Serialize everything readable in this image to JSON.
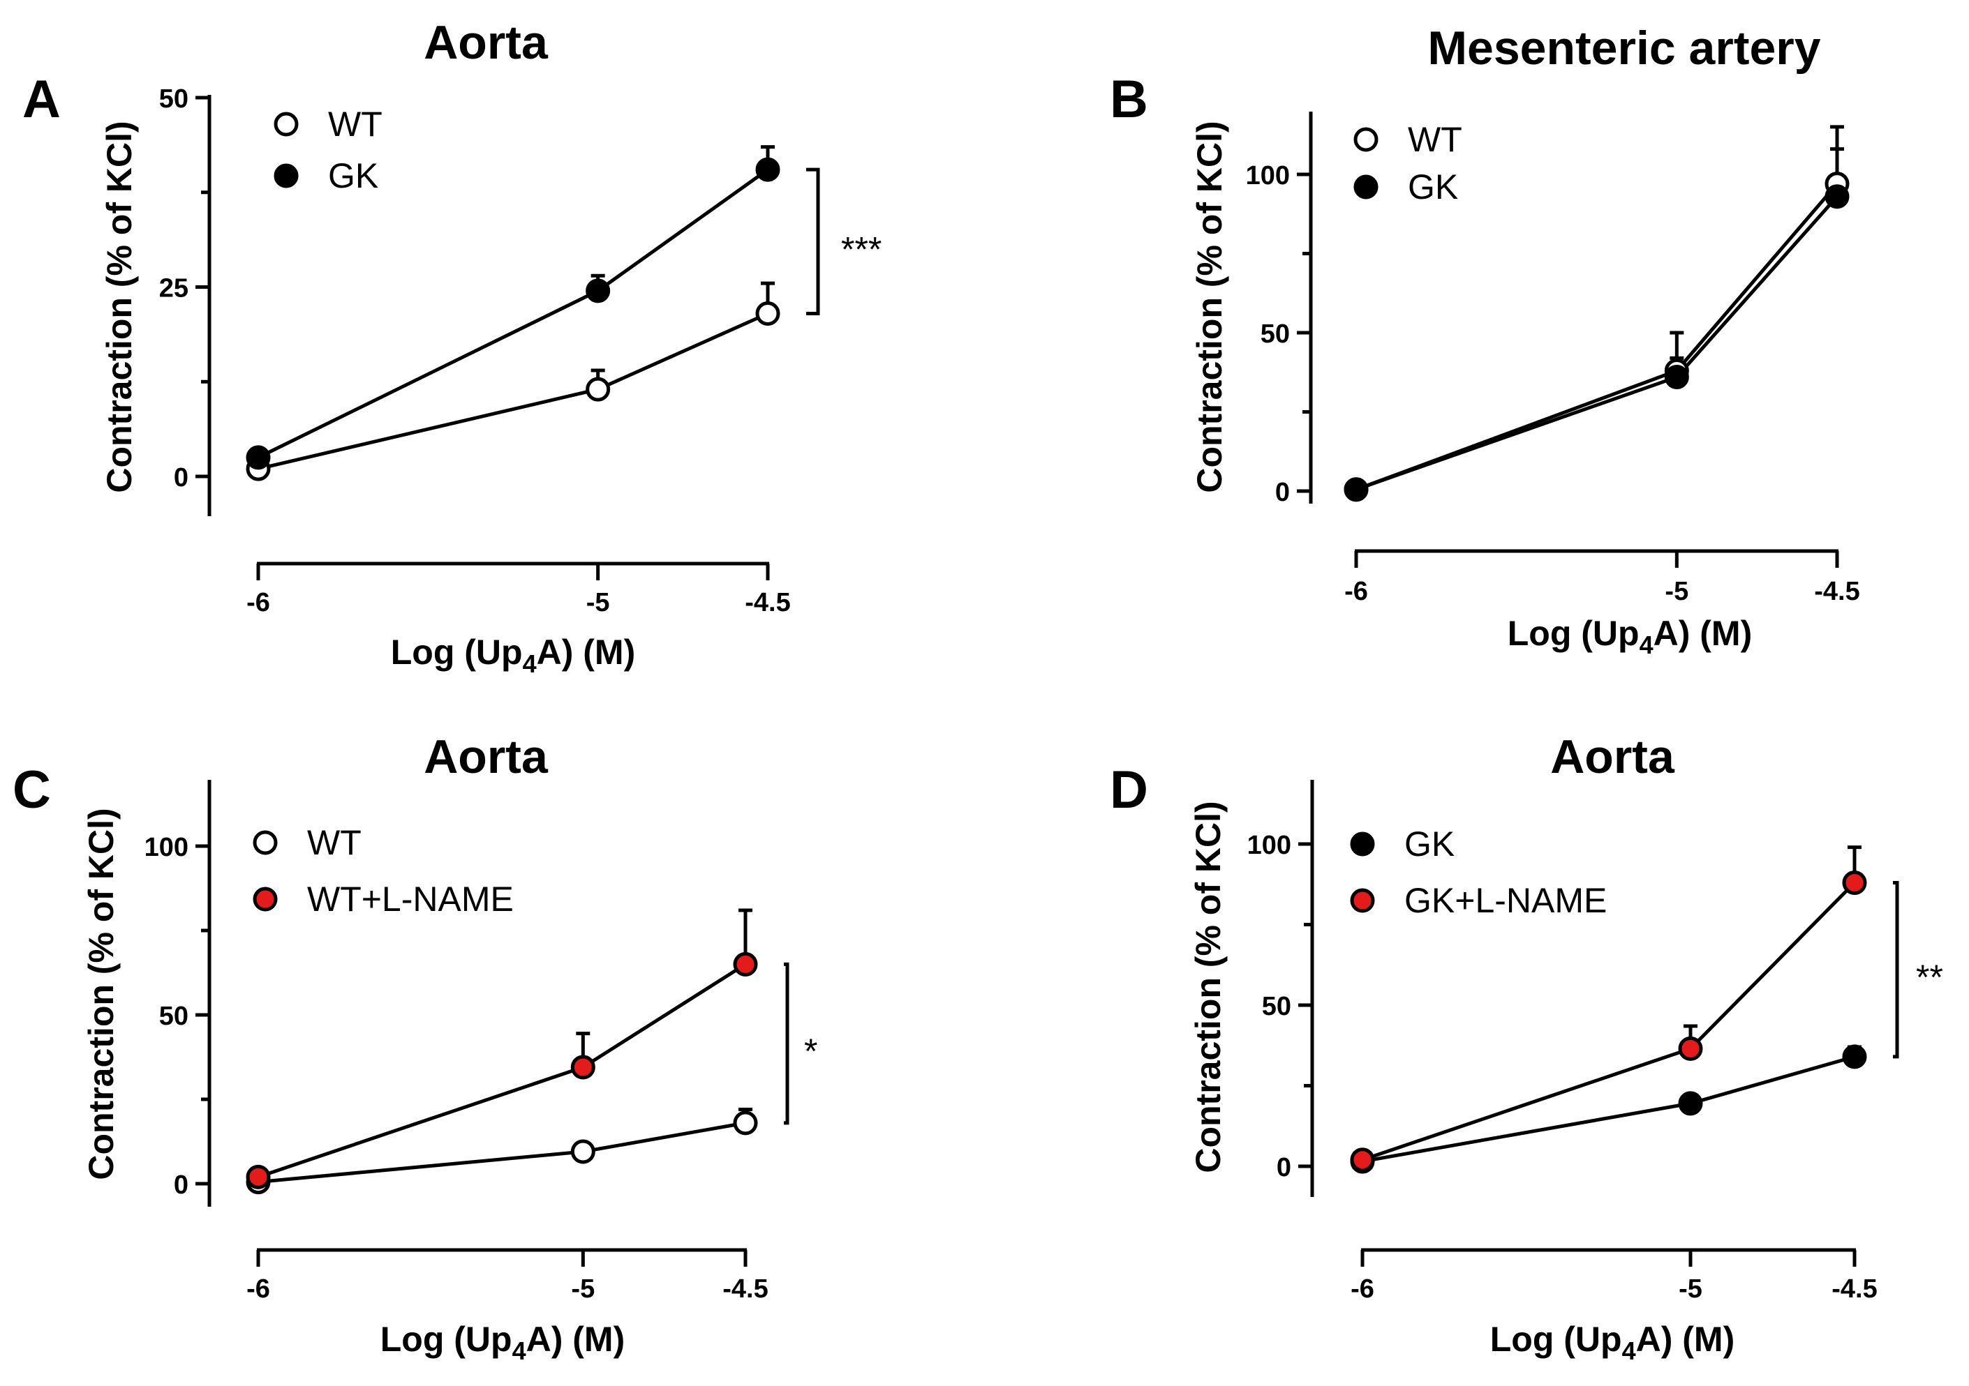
{
  "figure": {
    "colors": {
      "open": "#ffffff",
      "filled": "#000000",
      "red": "#e31b1b",
      "ink": "#000000"
    }
  },
  "chart_data": [
    {
      "panel": "A",
      "type": "line",
      "title": "Aorta",
      "xlabel": "Log (Up4A) (M)",
      "xlabel_main": "Log (Up",
      "xlabel_sub": "4",
      "xlabel_tail": "A) (M)",
      "ylabel": "Contraction (% of KCl)",
      "x": [
        -6,
        -5,
        -4.5
      ],
      "xticks": [
        "-6",
        "-5",
        "-4.5"
      ],
      "xlim": [
        -6,
        -4.5
      ],
      "ylim": [
        -5,
        50
      ],
      "yticks": [
        0,
        25,
        50
      ],
      "series": [
        {
          "name": "WT",
          "style": "open",
          "values": [
            1,
            11.5,
            21.5
          ],
          "errors": [
            0.5,
            2.5,
            4
          ]
        },
        {
          "name": "GK",
          "style": "filled",
          "values": [
            2.5,
            24.5,
            40.5
          ],
          "errors": [
            0.5,
            2,
            3
          ]
        }
      ],
      "significance": "***",
      "legend_position": "top-left"
    },
    {
      "panel": "B",
      "type": "line",
      "title": "Mesenteric artery",
      "xlabel": "Log (Up4A) (M)",
      "xlabel_main": "Log (Up",
      "xlabel_sub": "4",
      "xlabel_tail": "A) (M)",
      "ylabel": "Contraction (% of KCl)",
      "x": [
        -6,
        -5,
        -4.5
      ],
      "xticks": [
        "-6",
        "-5",
        "-4.5"
      ],
      "xlim": [
        -6,
        -4.5
      ],
      "ylim": [
        -5,
        120
      ],
      "yticks": [
        0,
        50,
        100
      ],
      "series": [
        {
          "name": "WT",
          "style": "open",
          "values": [
            0.5,
            38,
            97
          ],
          "errors": [
            0.5,
            12,
            18
          ]
        },
        {
          "name": "GK",
          "style": "filled",
          "values": [
            0.5,
            36,
            93
          ],
          "errors": [
            0.5,
            6,
            15
          ]
        }
      ],
      "significance": "",
      "legend_position": "top-left"
    },
    {
      "panel": "C",
      "type": "line",
      "title": "Aorta",
      "xlabel": "Log (Up4A) (M)",
      "xlabel_main": "Log (Up",
      "xlabel_sub": "4",
      "xlabel_tail": "A) (M)",
      "ylabel": "Contraction (% of KCl)",
      "x": [
        -6,
        -5,
        -4.5
      ],
      "xticks": [
        "-6",
        "-5",
        "-4.5"
      ],
      "xlim": [
        -6,
        -4.5
      ],
      "ylim": [
        -5,
        120
      ],
      "yticks": [
        0,
        50,
        100
      ],
      "series": [
        {
          "name": "WT",
          "style": "open",
          "values": [
            0.5,
            9.5,
            18
          ],
          "errors": [
            0.5,
            1.5,
            4
          ]
        },
        {
          "name": "WT+L-NAME",
          "style": "red",
          "values": [
            2,
            34.5,
            65
          ],
          "errors": [
            0.5,
            10,
            16
          ]
        }
      ],
      "significance": "*",
      "legend_position": "top-left"
    },
    {
      "panel": "D",
      "type": "line",
      "title": "Aorta",
      "xlabel": "Log (Up4A) (M)",
      "xlabel_main": "Log (Up",
      "xlabel_sub": "4",
      "xlabel_tail": "A) (M)",
      "ylabel": "Contraction (% of KCl)",
      "x": [
        -6,
        -5,
        -4.5
      ],
      "xticks": [
        "-6",
        "-5",
        "-4.5"
      ],
      "xlim": [
        -6,
        -4.5
      ],
      "ylim": [
        -5,
        120
      ],
      "yticks": [
        0,
        50,
        100
      ],
      "series": [
        {
          "name": "GK",
          "style": "filled",
          "values": [
            1.5,
            19.5,
            34
          ],
          "errors": [
            0.5,
            1.5,
            3
          ]
        },
        {
          "name": "GK+L-NAME",
          "style": "red",
          "values": [
            2,
            36.5,
            88
          ],
          "errors": [
            0.5,
            7,
            11
          ]
        }
      ],
      "significance": "**",
      "legend_position": "top-left"
    }
  ]
}
